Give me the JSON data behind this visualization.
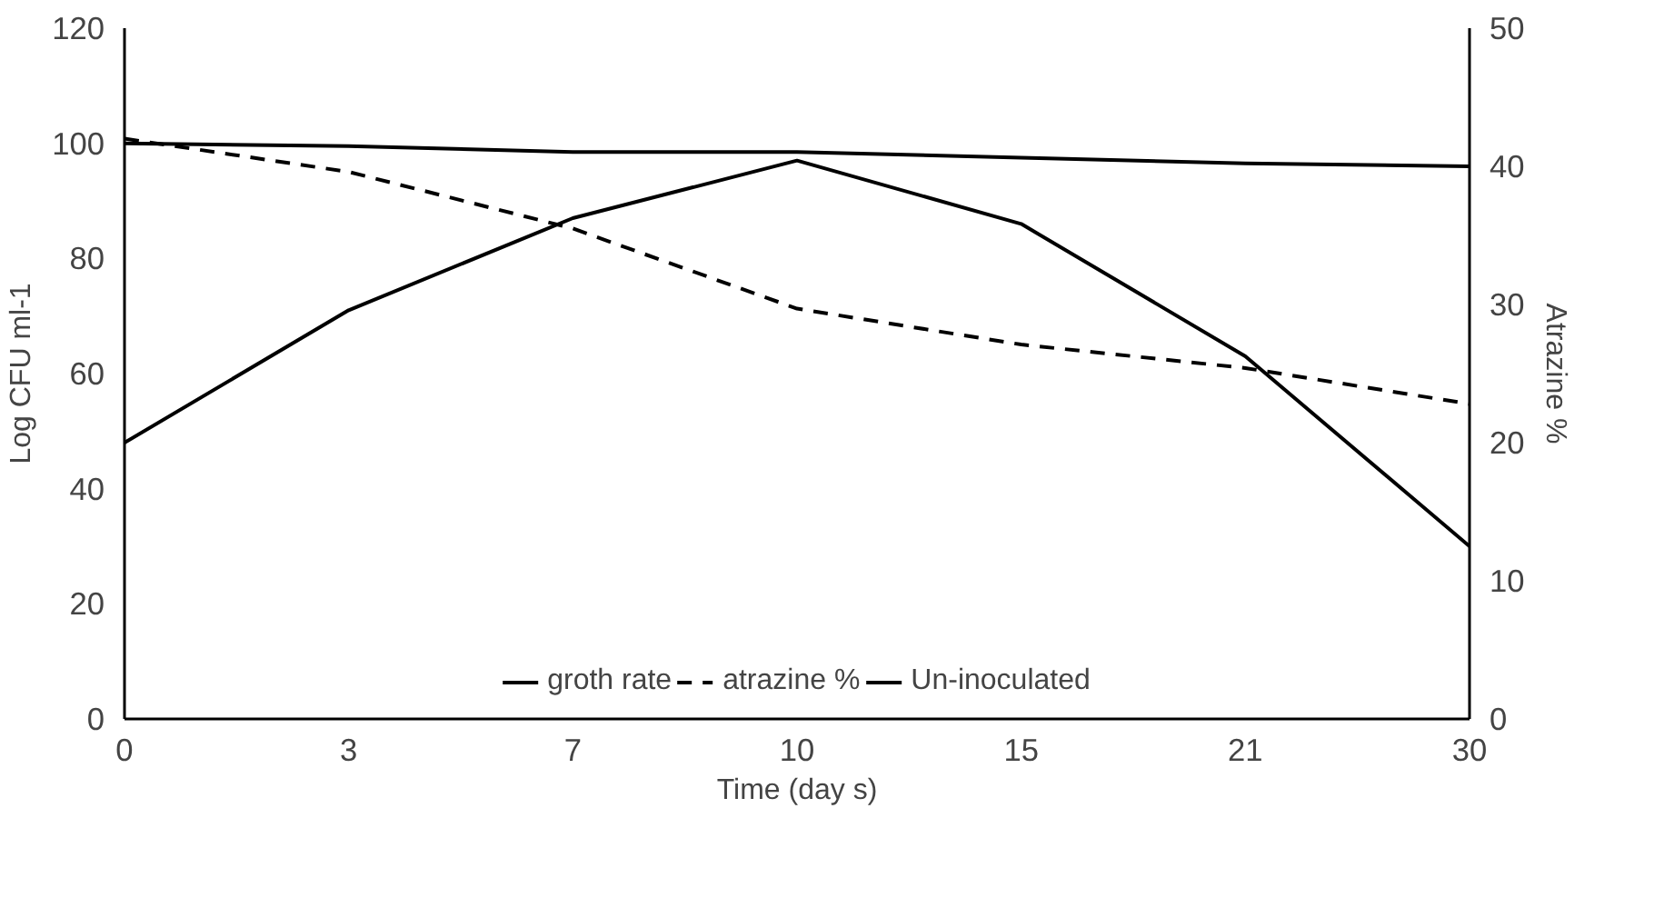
{
  "chart_data": {
    "type": "line",
    "xlabel": "Time (day s)",
    "ylabel": "Log CFU ml-1",
    "y2label": "Atrazine %",
    "categories": [
      "0",
      "3",
      "7",
      "10",
      "15",
      "21",
      "30"
    ],
    "series": [
      {
        "name": "groth rate",
        "color": "#000000",
        "line_style": "solid",
        "values": [
          48,
          71,
          87,
          97,
          86,
          63,
          30
        ]
      },
      {
        "name": "atrazine %",
        "color": "#000000",
        "line_style": "dashed",
        "axis": "y2",
        "values": [
          42,
          39.6,
          35.5,
          29.7,
          27.1,
          25.4,
          22.8
        ]
      },
      {
        "name": "Un-inoculated",
        "color": "#000000",
        "line_style": "solid",
        "values": [
          100,
          99.5,
          98.5,
          98.5,
          97.5,
          96.5,
          96
        ]
      }
    ],
    "ylim": [
      0,
      120
    ],
    "yticks": [
      0,
      20,
      40,
      60,
      80,
      100,
      120
    ],
    "y2lim": [
      0,
      50
    ],
    "y2ticks": [
      0,
      10,
      20,
      30,
      40,
      50
    ],
    "grid": false,
    "legend": "bottom",
    "marker": "none"
  }
}
